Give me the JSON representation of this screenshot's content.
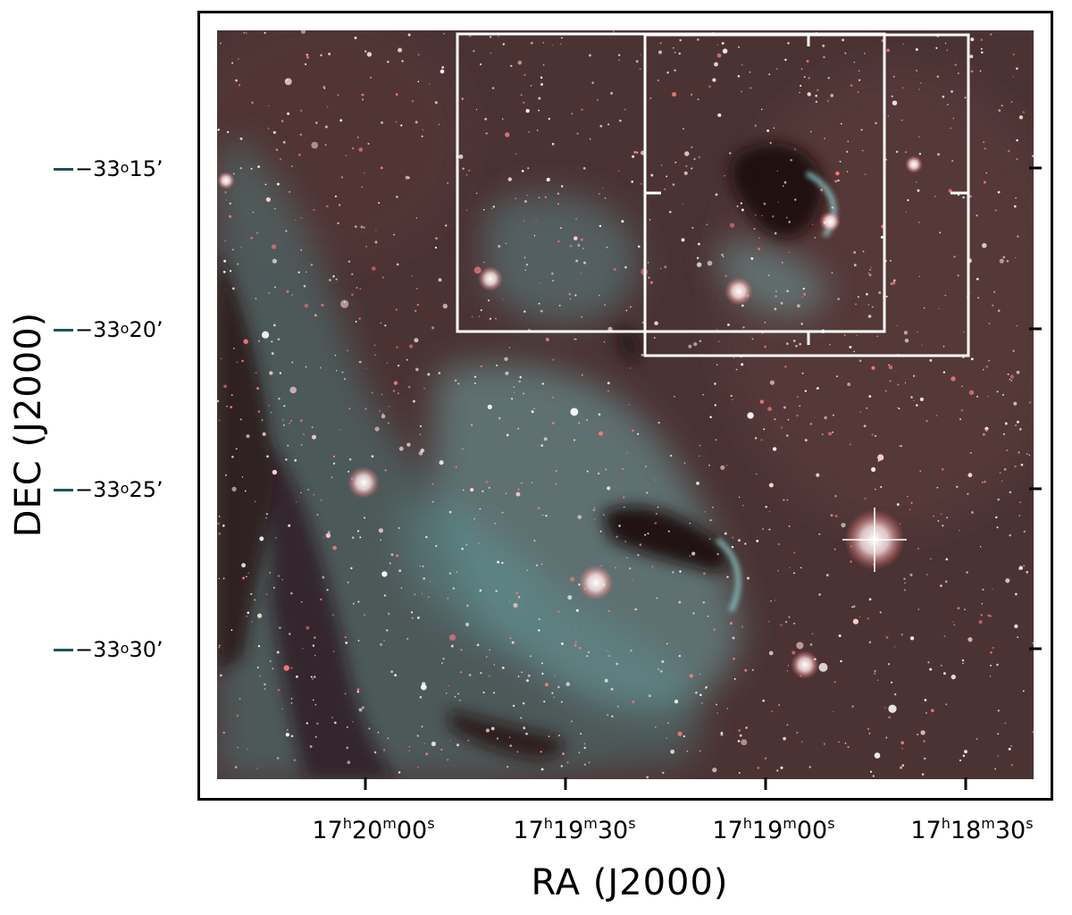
{
  "figure": {
    "x_axis_title": "RA  (J2000)",
    "y_axis_title": "DEC (J2000)",
    "y_ticks": [
      {
        "deg": "−33",
        "deg_sup": "o",
        "min": "15’"
      },
      {
        "deg": "−33",
        "deg_sup": "o",
        "min": "20’"
      },
      {
        "deg": "−33",
        "deg_sup": "o",
        "min": "25’"
      },
      {
        "deg": "−33",
        "deg_sup": "o",
        "min": "30’"
      }
    ],
    "x_ticks": [
      {
        "h": "17",
        "m": "20",
        "s": "00"
      },
      {
        "h": "17",
        "m": "19",
        "s": "30"
      },
      {
        "h": "17",
        "m": "19",
        "s": "00"
      },
      {
        "h": "17",
        "m": "18",
        "s": "30"
      }
    ],
    "unit_h": "h",
    "unit_m": "m",
    "unit_s": "s",
    "colors": {
      "sky_background": "#4a2e2f",
      "nebula_cyan": "#6fb3b4",
      "dust_lane": "#1c0f12",
      "frame": "#000000",
      "overlay_boxes": "#ffffff"
    }
  }
}
